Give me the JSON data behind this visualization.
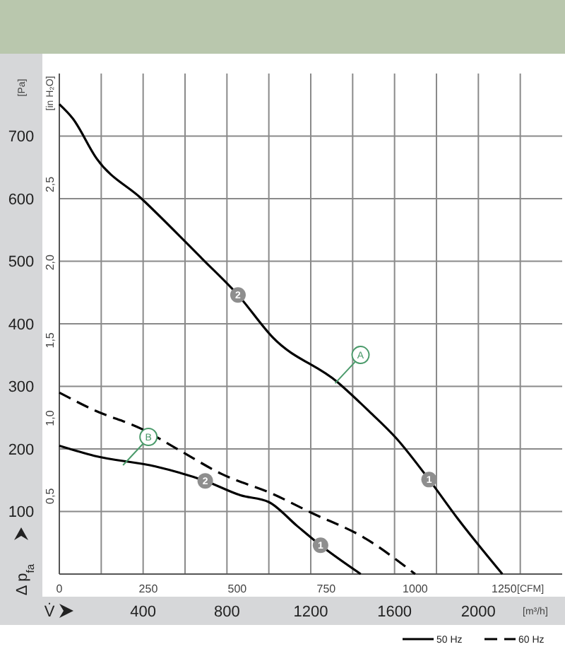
{
  "chart_data": {
    "type": "line",
    "xlabel": "[CFM]",
    "x2label": "[m³/h]",
    "ylabel": "Δ p$_{fa}$",
    "y2label": "[in H₂O]",
    "xlim": [
      0,
      1413
    ],
    "xticks": [
      0,
      250,
      500,
      750,
      1000,
      1250
    ],
    "x2lim": [
      0,
      2400
    ],
    "x2ticks": [
      {
        "value": 200,
        "label": null
      },
      400,
      {
        "value": 600,
        "label": null
      },
      800,
      {
        "value": 1000,
        "label": null
      },
      1200,
      {
        "value": 1400,
        "label": null
      },
      1600,
      {
        "value": 1800,
        "label": null
      },
      2000,
      {
        "value": 2200,
        "label": null
      }
    ],
    "ylim": [
      0,
      800
    ],
    "yticks": [
      100,
      200,
      300,
      400,
      500,
      600,
      700
    ],
    "y2lim": [
      0,
      3.212
    ],
    "y2ticks": [
      {
        "value": 0.5,
        "label": "0,5"
      },
      {
        "value": 1.0,
        "label": "1,0"
      },
      {
        "value": 1.5,
        "label": "1,5"
      },
      {
        "value": 2.0,
        "label": "2,0"
      },
      {
        "value": 2.5,
        "label": "2,5"
      }
    ],
    "grid": true,
    "legend": "bottom right",
    "marker": "none",
    "series": [
      {
        "name": "50 Hz",
        "color": "#000000",
        "line_style": "solid",
        "x": [
          0,
          38,
          105,
          231,
          403,
          502,
          600,
          781,
          867,
          947,
          1039,
          1119,
          1245
        ],
        "values": [
          751,
          728,
          664,
          600,
          503,
          446,
          378,
          307,
          262,
          217,
          151,
          89,
          0
        ]
      },
      {
        "color": "#000000",
        "line_style": "solid",
        "x": [
          0,
          98,
          270,
          410,
          509,
          589,
          668,
          734,
          847
        ],
        "values": [
          205,
          189,
          172,
          149,
          126,
          115,
          77,
          46,
          0
        ]
      },
      {
        "name": "60 Hz",
        "color": "#000000",
        "line_style": "dashed",
        "x": [
          0,
          98,
          231,
          337,
          456,
          600,
          708,
          854,
          1000
        ],
        "values": [
          290,
          262,
          232,
          198,
          160,
          128,
          98,
          59,
          0
        ]
      }
    ],
    "annotations": [
      "[Pa]",
      "V̇",
      {
        "text": "2",
        "x": 502,
        "y": 446
      },
      {
        "text": "1",
        "x": 1039,
        "y": 151
      },
      {
        "text": "2",
        "x": 410,
        "y": 149
      },
      {
        "text": "1",
        "x": 734,
        "y": 46
      },
      {
        "text": "A",
        "x": 775,
        "y": 305
      },
      {
        "text": "B",
        "x": 179,
        "y": 174
      }
    ]
  }
}
